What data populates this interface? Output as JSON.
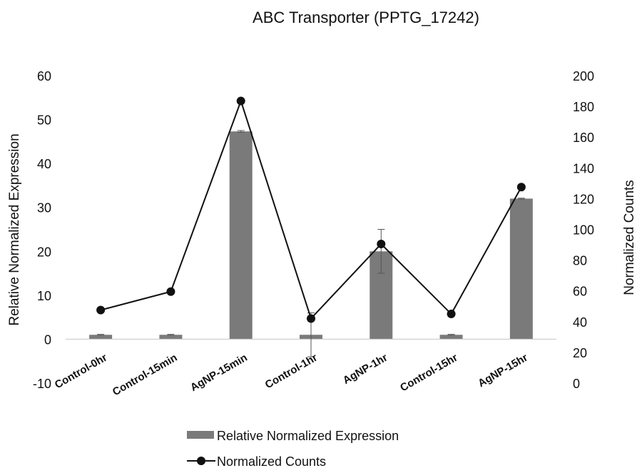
{
  "chart_data": {
    "type": "bar",
    "title": "ABC Transporter (PPTG_17242)",
    "categories": [
      "Control-0hr",
      "Control-15min",
      "AgNP-15min",
      "Control-1hr",
      "AgNP-1hr",
      "Control-15hr",
      "AgNP-15hr"
    ],
    "series": [
      {
        "name": "Relative Normalized Expression",
        "type": "bar",
        "axis": "left",
        "values": [
          1,
          1,
          47.3,
          1,
          20,
          1,
          32
        ],
        "error": [
          0.1,
          0.1,
          0.2,
          5,
          5,
          0.1,
          0.1
        ]
      },
      {
        "name": "Normalized Counts",
        "type": "line",
        "axis": "right",
        "values": [
          47.5,
          59.5,
          183.5,
          42,
          90.5,
          45,
          127.5
        ]
      }
    ],
    "ylabel": "Relative Normalized Expression",
    "ylabel_right": "Normalized Counts",
    "ylim": [
      -10,
      60
    ],
    "ylim_right": [
      0,
      200
    ],
    "yticks": [
      "-10",
      "0",
      "10",
      "20",
      "30",
      "40",
      "50",
      "60"
    ],
    "yticks_right": [
      "0",
      "20",
      "40",
      "60",
      "80",
      "100",
      "120",
      "140",
      "160",
      "180",
      "200"
    ],
    "legend_position": "bottom",
    "grid": false,
    "colors": {
      "bar": "#7a7a7a",
      "line": "#111111",
      "axis": "#cccccc"
    }
  }
}
